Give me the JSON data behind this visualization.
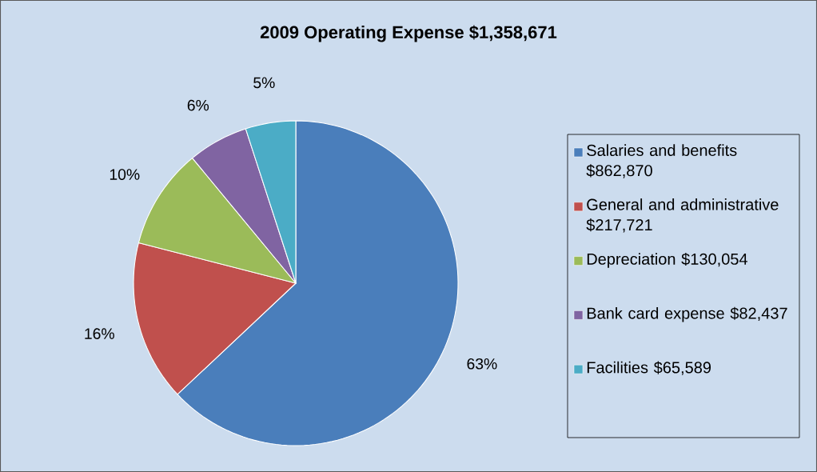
{
  "chart_data": {
    "type": "pie",
    "title": "2009 Operating Expense $1,358,671",
    "categories": [
      "Salaries and benefits $862,870",
      "General and administrative $217,721",
      "Depreciation $130,054",
      "Bank card expense $82,437",
      "Facilities $65,589"
    ],
    "values": [
      63,
      16,
      10,
      6,
      5
    ],
    "value_labels": [
      "63%",
      "16%",
      "10%",
      "6%",
      "5%"
    ],
    "colors": [
      "#4a7ebb",
      "#c0504d",
      "#9bbb59",
      "#8064a2",
      "#4bacc6"
    ],
    "legend": "right"
  }
}
